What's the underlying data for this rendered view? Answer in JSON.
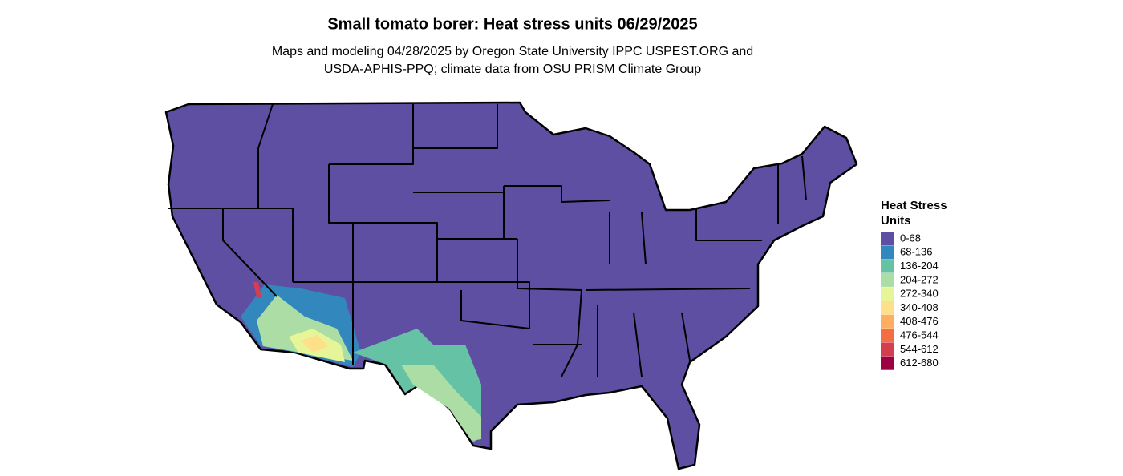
{
  "header": {
    "title": "Small tomato borer: Heat stress units 06/29/2025",
    "subtitle": [
      "Maps and modeling 04/28/2025 by Oregon State University IPPC USPEST.ORG and",
      "USDA-APHIS-PPQ; climate data from OSU PRISM Climate Group"
    ]
  },
  "legend": {
    "title": [
      "Heat Stress",
      "Units"
    ],
    "items": [
      {
        "label": "0-68",
        "color": "#5e4fa2"
      },
      {
        "label": "68-136",
        "color": "#3288bd"
      },
      {
        "label": "136-204",
        "color": "#66c2a5"
      },
      {
        "label": "204-272",
        "color": "#abdda4"
      },
      {
        "label": "272-340",
        "color": "#e6f598"
      },
      {
        "label": "340-408",
        "color": "#fee08b"
      },
      {
        "label": "408-476",
        "color": "#fdae61"
      },
      {
        "label": "476-544",
        "color": "#f46d43"
      },
      {
        "label": "544-612",
        "color": "#d53e4f"
      },
      {
        "label": "612-680",
        "color": "#9e0142"
      }
    ]
  }
}
